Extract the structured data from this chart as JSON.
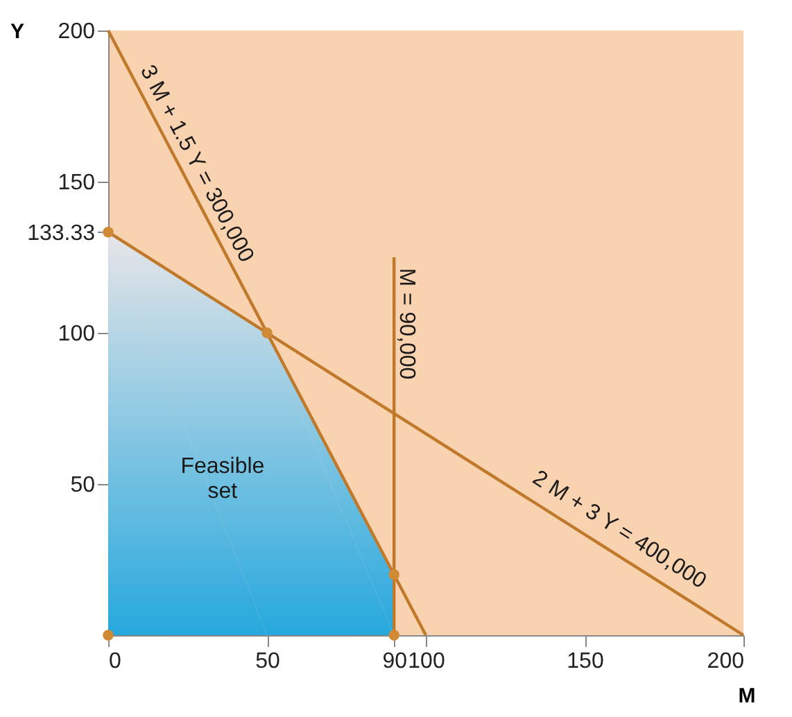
{
  "chart_data": {
    "type": "line",
    "xlabel": "M",
    "ylabel": "Y",
    "xlim": [
      0,
      200
    ],
    "ylim": [
      0,
      200
    ],
    "xticks": [
      0,
      50,
      90,
      100,
      150,
      200
    ],
    "yticks": [
      50,
      100,
      {
        "value": 133.33,
        "label": "133.33"
      },
      150,
      200
    ],
    "grid": false,
    "line_style": "solid",
    "series": [
      {
        "type": "area",
        "color": "#1ba6e0",
        "x": [
          0,
          50,
          90
        ],
        "values": [
          133.33,
          100,
          20
        ]
      },
      {
        "color": "#c0782a",
        "x": [
          0,
          100
        ],
        "values": [
          200,
          0
        ]
      },
      {
        "color": "#c0782a",
        "x": [
          0,
          200
        ],
        "values": [
          133.33,
          0
        ]
      },
      {
        "color": "#c0782a",
        "x": [
          90,
          90
        ],
        "values": [
          0,
          125
        ]
      },
      {
        "type": "scatter",
        "color": "#d08a35",
        "x": [
          0,
          0,
          50,
          90,
          90
        ],
        "values": [
          0,
          133.33,
          100,
          20,
          0
        ]
      }
    ],
    "annotations": [
      "3 M + 1.5 Y = 300,000",
      "M = 90,000",
      "2 M + 3 Y = 400,000",
      "Feasible\nset"
    ]
  }
}
